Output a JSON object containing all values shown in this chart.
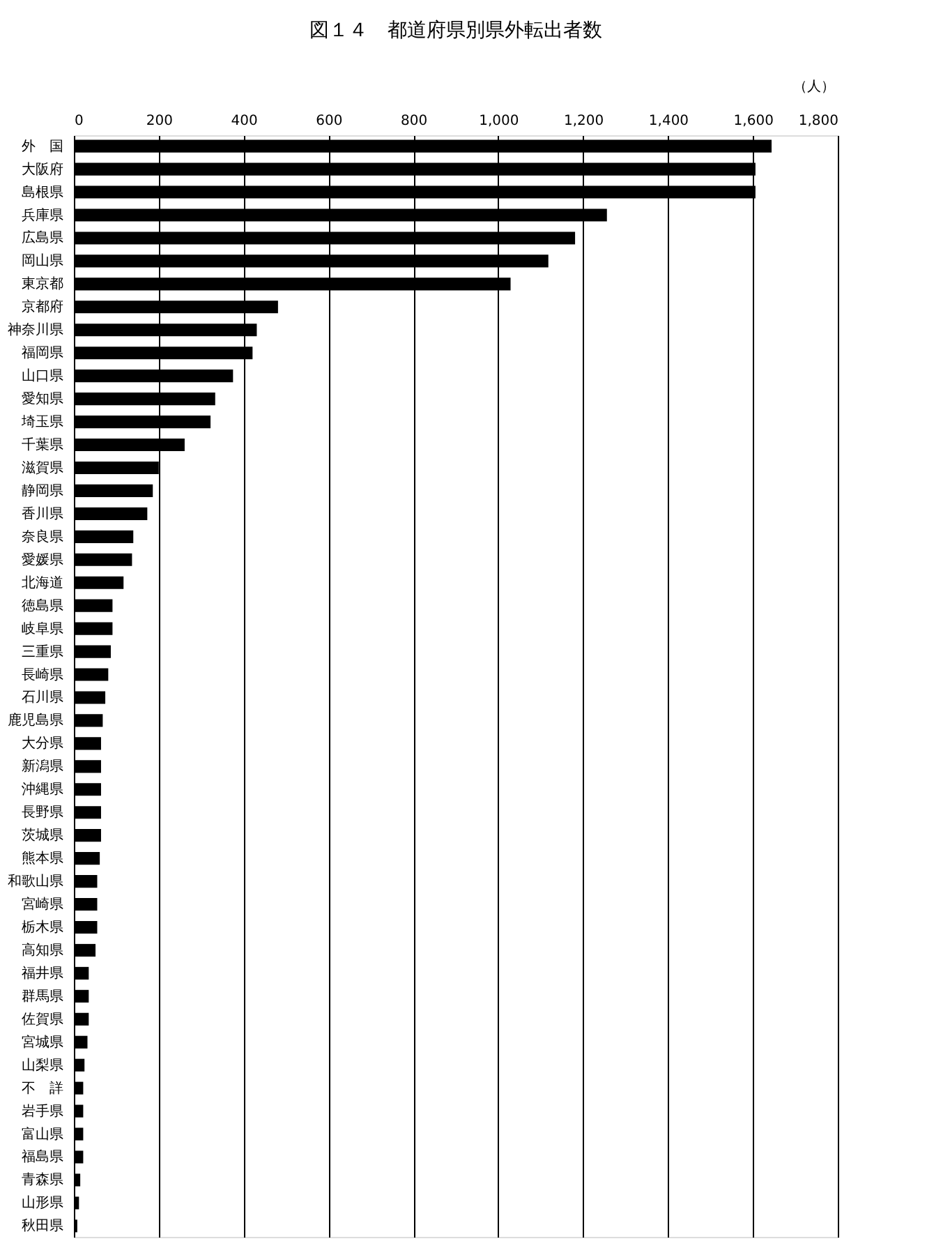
{
  "chart_data": {
    "type": "bar",
    "orientation": "horizontal",
    "title": "図１４　都道府県別県外転出者数",
    "annotations": [
      "（人）"
    ],
    "categories": [
      "外　国",
      "大阪府",
      "島根県",
      "兵庫県",
      "広島県",
      "岡山県",
      "東京都",
      "京都府",
      "神奈川県",
      "福岡県",
      "山口県",
      "愛知県",
      "埼玉県",
      "千葉県",
      "滋賀県",
      "静岡県",
      "香川県",
      "奈良県",
      "愛媛県",
      "北海道",
      "徳島県",
      "岐阜県",
      "三重県",
      "長崎県",
      "石川県",
      "鹿児島県",
      "大分県",
      "新潟県",
      "沖縄県",
      "長野県",
      "茨城県",
      "熊本県",
      "和歌山県",
      "宮崎県",
      "栃木県",
      "高知県",
      "福井県",
      "群馬県",
      "佐賀県",
      "宮城県",
      "山梨県",
      "不　詳",
      "岩手県",
      "富山県",
      "福島県",
      "青森県",
      "山形県",
      "秋田県"
    ],
    "values": [
      1644,
      1606,
      1606,
      1256,
      1181,
      1118,
      1029,
      481,
      431,
      421,
      375,
      333,
      322,
      261,
      200,
      186,
      173,
      140,
      137,
      117,
      91,
      91,
      87,
      81,
      74,
      68,
      64,
      64,
      64,
      64,
      64,
      61,
      55,
      55,
      55,
      51,
      35,
      35,
      35,
      32,
      25,
      22,
      22,
      22,
      22,
      15,
      12,
      8
    ],
    "color": "#000000",
    "xlim": [
      0,
      1800
    ],
    "xticks": [
      0,
      200,
      400,
      600,
      800,
      {
        "value": 1000,
        "label": "1,000"
      },
      {
        "value": 1200,
        "label": "1,200"
      },
      {
        "value": 1400,
        "label": "1,400"
      },
      {
        "value": 1600,
        "label": "1,600"
      },
      {
        "value": 1800,
        "label": "1,800"
      }
    ],
    "grid": "x"
  }
}
